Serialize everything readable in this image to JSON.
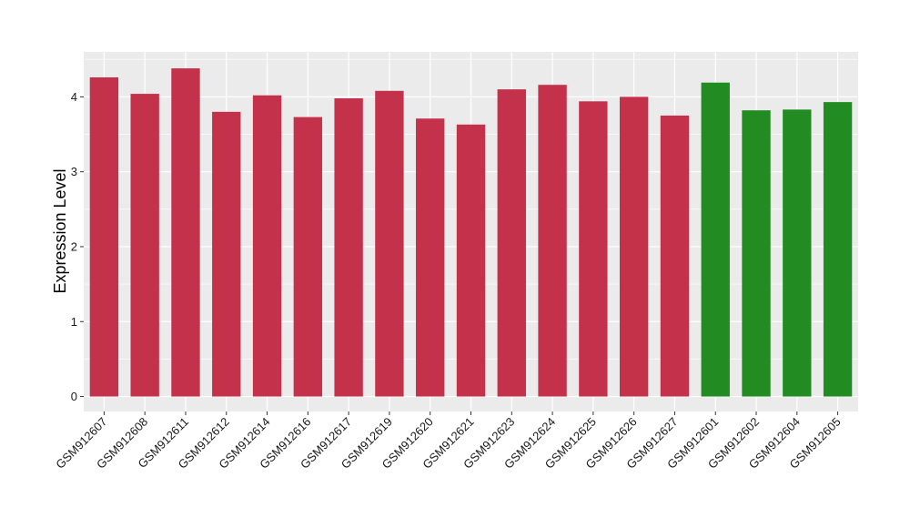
{
  "chart_data": {
    "type": "bar",
    "ylabel": "Expression Level",
    "xlabel": "",
    "ylim": [
      -0.2,
      4.6
    ],
    "yticks": [
      0,
      1,
      2,
      3,
      4
    ],
    "grid": true,
    "categories": [
      "GSM912607",
      "GSM912608",
      "GSM912611",
      "GSM912612",
      "GSM912614",
      "GSM912616",
      "GSM912617",
      "GSM912619",
      "GSM912620",
      "GSM912621",
      "GSM912623",
      "GSM912624",
      "GSM912625",
      "GSM912626",
      "GSM912627",
      "GSM912601",
      "GSM912602",
      "GSM912604",
      "GSM912605"
    ],
    "values": [
      4.26,
      4.04,
      4.38,
      3.8,
      4.02,
      3.73,
      3.98,
      4.08,
      3.71,
      3.63,
      4.1,
      4.16,
      3.94,
      4.0,
      3.75,
      4.19,
      3.82,
      3.83,
      3.93
    ],
    "bar_colors": [
      "#c3314b",
      "#c3314b",
      "#c3314b",
      "#c3314b",
      "#c3314b",
      "#c3314b",
      "#c3314b",
      "#c3314b",
      "#c3314b",
      "#c3314b",
      "#c3314b",
      "#c3314b",
      "#c3314b",
      "#c3314b",
      "#c3314b",
      "#228b22",
      "#228b22",
      "#228b22",
      "#228b22"
    ],
    "panel_background": "#ebebeb",
    "grid_color": "#ffffff"
  }
}
